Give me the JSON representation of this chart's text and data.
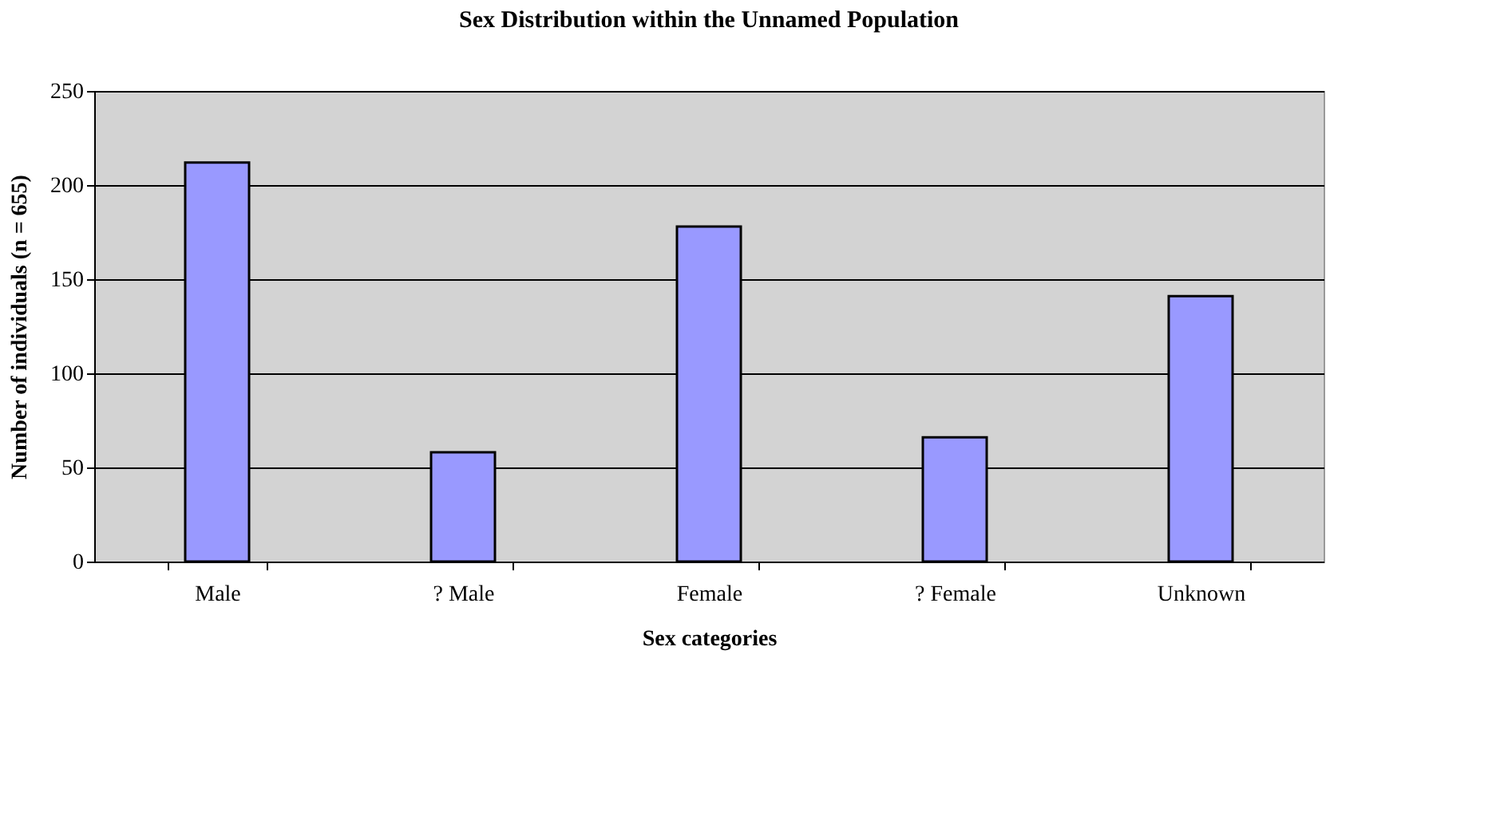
{
  "chart_data": {
    "type": "bar",
    "title": "Sex Distribution within the Unnamed Population",
    "xlabel": "Sex categories",
    "ylabel": "Number of individuals (n = 655)",
    "categories": [
      "Male",
      "? Male",
      "Female",
      "? Female",
      "Unknown"
    ],
    "values": [
      212,
      58,
      178,
      66,
      141
    ],
    "color": "#9999ff",
    "ylim": [
      0,
      250
    ],
    "yticks": [
      0,
      50,
      100,
      150,
      200,
      250
    ],
    "grid": "y"
  }
}
